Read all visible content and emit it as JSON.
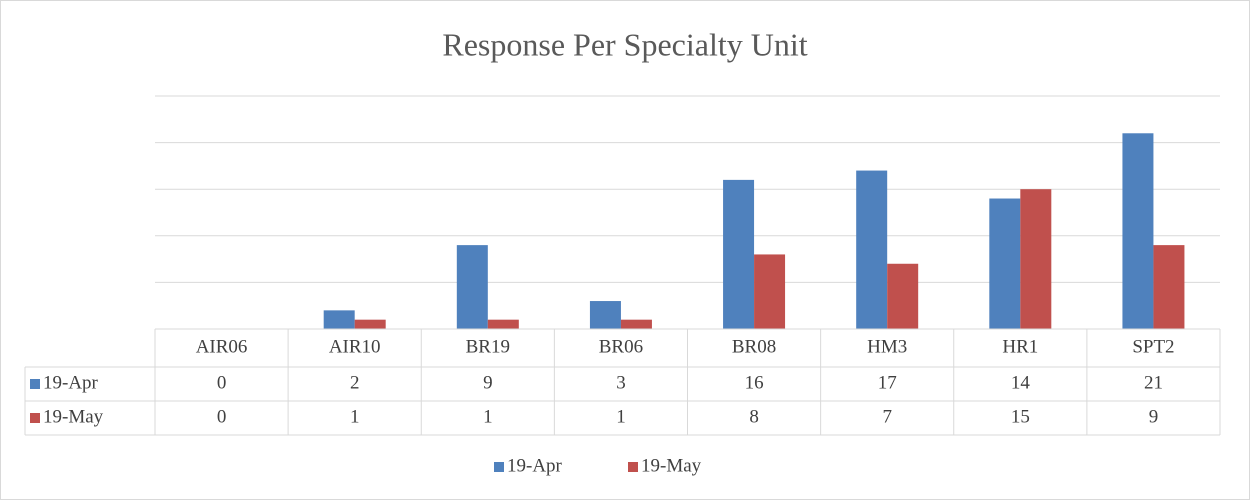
{
  "chart_data": {
    "type": "bar",
    "title": "Response Per Specialty Unit",
    "categories": [
      "AIR06",
      "AIR10",
      "BR19",
      "BR06",
      "BR08",
      "HM3",
      "HR1",
      "SPT2"
    ],
    "series": [
      {
        "name": "19-Apr",
        "color": "#4f81bd",
        "values": [
          0,
          2,
          9,
          3,
          16,
          17,
          14,
          21
        ]
      },
      {
        "name": "19-May",
        "color": "#c0504d",
        "values": [
          0,
          1,
          1,
          1,
          8,
          7,
          15,
          9
        ]
      }
    ],
    "ylim": [
      0,
      25
    ],
    "yticks": [
      0,
      5,
      10,
      15,
      20,
      25
    ],
    "grid": true,
    "legend": "bottom",
    "data_table": true
  }
}
